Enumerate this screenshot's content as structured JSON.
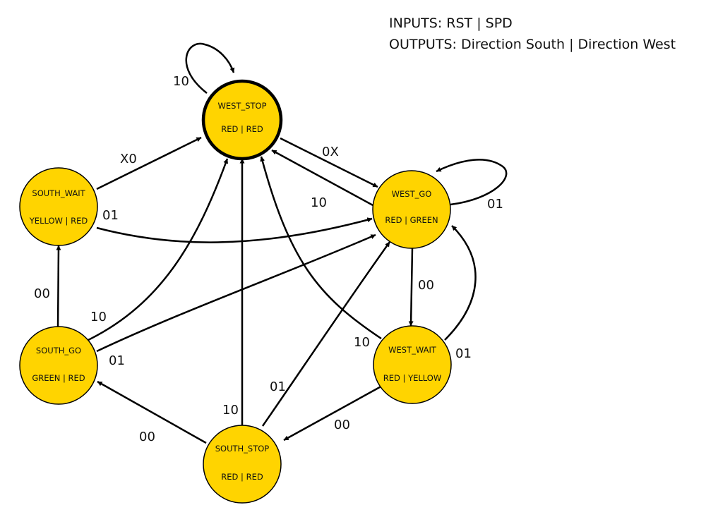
{
  "legend": {
    "inputs": "INPUTS: RST | SPD",
    "outputs": "OUTPUTS: Direction South | Direction West"
  },
  "colors": {
    "state_fill": "#FFD400",
    "stroke": "#000000"
  },
  "states": {
    "west_stop": {
      "name": "WEST_STOP",
      "outputs": "RED | RED",
      "initial": true
    },
    "west_go": {
      "name": "WEST_GO",
      "outputs": "RED | GREEN"
    },
    "west_wait": {
      "name": "WEST_WAIT",
      "outputs": "RED | YELLOW"
    },
    "south_stop": {
      "name": "SOUTH_STOP",
      "outputs": "RED | RED"
    },
    "south_go": {
      "name": "SOUTH_GO",
      "outputs": "GREEN | RED"
    },
    "south_wait": {
      "name": "SOUTH_WAIT",
      "outputs": "YELLOW | RED"
    }
  },
  "transitions": [
    {
      "id": "ws-self",
      "from": "WEST_STOP",
      "to": "WEST_STOP",
      "label": "10"
    },
    {
      "id": "sw-ws",
      "from": "SOUTH_WAIT",
      "to": "WEST_STOP",
      "label": "X0"
    },
    {
      "id": "ws-wg",
      "from": "WEST_STOP",
      "to": "WEST_GO",
      "label": "0X"
    },
    {
      "id": "wg-ws",
      "from": "WEST_GO",
      "to": "WEST_STOP",
      "label": "10"
    },
    {
      "id": "wg-self",
      "from": "WEST_GO",
      "to": "WEST_GO",
      "label": "01"
    },
    {
      "id": "sw-wg",
      "from": "SOUTH_WAIT",
      "to": "WEST_GO",
      "label": "01"
    },
    {
      "id": "sg-sw",
      "from": "SOUTH_GO",
      "to": "SOUTH_WAIT",
      "label": "00"
    },
    {
      "id": "sg-ws",
      "from": "SOUTH_GO",
      "to": "WEST_STOP",
      "label": "10"
    },
    {
      "id": "sg-wg",
      "from": "SOUTH_GO",
      "to": "WEST_GO",
      "label": "01"
    },
    {
      "id": "wg-ww",
      "from": "WEST_GO",
      "to": "WEST_WAIT",
      "label": "00"
    },
    {
      "id": "ww-ws",
      "from": "WEST_WAIT",
      "to": "WEST_STOP",
      "label": "10"
    },
    {
      "id": "ww-wg",
      "from": "WEST_WAIT",
      "to": "WEST_GO",
      "label": "01"
    },
    {
      "id": "ss-ws",
      "from": "SOUTH_STOP",
      "to": "WEST_STOP",
      "label": "10"
    },
    {
      "id": "ss-wg",
      "from": "SOUTH_STOP",
      "to": "WEST_GO",
      "label": "01"
    },
    {
      "id": "ss-sg",
      "from": "SOUTH_STOP",
      "to": "SOUTH_GO",
      "label": "00"
    },
    {
      "id": "ww-ss",
      "from": "WEST_WAIT",
      "to": "SOUTH_STOP",
      "label": "00"
    }
  ]
}
